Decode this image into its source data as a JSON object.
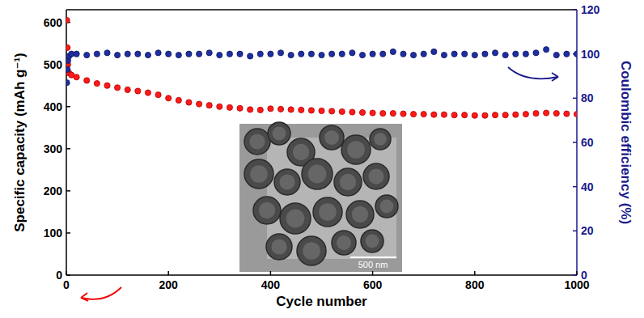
{
  "chart_data": {
    "type": "scatter",
    "x_label": "Cycle number",
    "y_label": "Specific capacity (mAh g⁻¹)",
    "y2_label": "Coulombic efficiency (%)",
    "annotations": [
      "500 nm"
    ],
    "x": [
      1,
      2,
      3,
      5,
      10,
      20,
      40,
      60,
      80,
      100,
      120,
      140,
      160,
      180,
      200,
      220,
      240,
      260,
      280,
      300,
      320,
      340,
      360,
      380,
      400,
      420,
      440,
      460,
      480,
      500,
      520,
      540,
      560,
      580,
      600,
      620,
      640,
      660,
      680,
      700,
      720,
      740,
      760,
      780,
      800,
      820,
      840,
      860,
      880,
      900,
      920,
      940,
      960,
      980,
      1000
    ],
    "series": [
      {
        "name": "Specific capacity",
        "color": "#ff1a1a",
        "marker": "circle",
        "values": [
          605,
          540,
          500,
          480,
          475,
          470,
          462,
          455,
          450,
          445,
          440,
          437,
          433,
          428,
          420,
          415,
          410,
          406,
          403,
          400,
          398,
          396,
          393,
          392,
          395,
          394,
          393,
          392,
          391,
          390,
          389,
          388,
          387,
          386,
          385,
          384,
          384,
          383,
          382,
          382,
          381,
          381,
          380,
          380,
          379,
          379,
          380,
          380,
          381,
          382,
          384,
          385,
          384,
          383,
          382
        ]
      },
      {
        "name": "Coulombic efficiency",
        "color": "#1f2fa0",
        "marker": "circle",
        "axis": "y2",
        "values": [
          87,
          93,
          97,
          99,
          100,
          100,
          99.5,
          100,
          100.5,
          99.5,
          100,
          100,
          99.5,
          100.5,
          100,
          99.5,
          100,
          100,
          100.5,
          99.5,
          100,
          100,
          99,
          100,
          100,
          100.5,
          99.5,
          100,
          100,
          99.5,
          100,
          100,
          100.5,
          99.5,
          100,
          100,
          101,
          100,
          99.5,
          100,
          101,
          99.5,
          100,
          100,
          99.5,
          100,
          100.5,
          99.5,
          100,
          100,
          100.5,
          102,
          99.5,
          100,
          100
        ]
      }
    ],
    "xlim": [
      0,
      1000
    ],
    "xticks": [
      0,
      200,
      400,
      600,
      800,
      1000
    ],
    "ylim": [
      0,
      630
    ],
    "yticks": [
      0,
      100,
      200,
      300,
      400,
      500,
      600
    ],
    "y2lim": [
      0,
      120
    ],
    "y2ticks": [
      0,
      20,
      40,
      60,
      80,
      100,
      120
    ],
    "grid": false
  }
}
